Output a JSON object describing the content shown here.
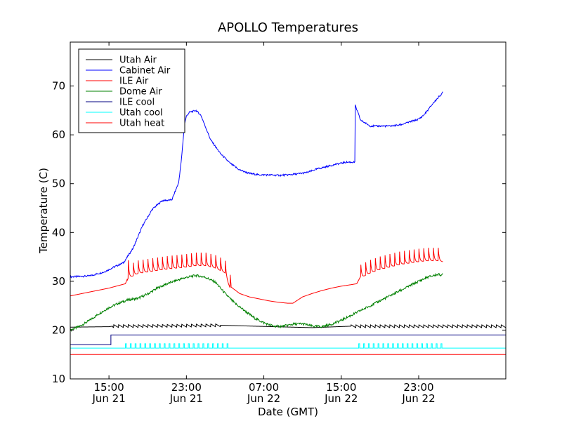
{
  "chart_data": {
    "type": "line",
    "title": "APOLLO Temperatures",
    "xlabel": "Date (GMT)",
    "ylabel": "Temperature (C)",
    "xlim": [
      11,
      56
    ],
    "ylim": [
      10,
      79
    ],
    "grid": false,
    "legend_position": "top-left",
    "x_unit": "hours since Jun 21 00:00 GMT",
    "x_ticks": [
      {
        "x": 15,
        "line1": "15:00",
        "line2": "Jun 21"
      },
      {
        "x": 23,
        "line1": "23:00",
        "line2": "Jun 21"
      },
      {
        "x": 31,
        "line1": "07:00",
        "line2": "Jun 22"
      },
      {
        "x": 39,
        "line1": "15:00",
        "line2": "Jun 22"
      },
      {
        "x": 47,
        "line1": "23:00",
        "line2": "Jun 22"
      }
    ],
    "y_ticks": [
      10,
      20,
      30,
      40,
      50,
      60,
      70
    ],
    "series": [
      {
        "name": "Utah Air",
        "color": "#000000",
        "style": "sawtooth",
        "x": [
          11,
          15,
          15.4,
          22,
          26.5,
          30,
          36,
          40,
          56
        ],
        "y": [
          20.6,
          20.7,
          20.8,
          20.9,
          21.0,
          20.8,
          20.5,
          20.8,
          20.8
        ],
        "oscillation": {
          "period": 0.5,
          "amplitude": 0.6,
          "active_ranges": [
            [
              15.4,
              26.5
            ],
            [
              40,
              56
            ]
          ]
        }
      },
      {
        "name": "Cabinet Air",
        "color": "#0000ff",
        "style": "line",
        "x": [
          11,
          13,
          14.5,
          15.5,
          16.5,
          17.5,
          18.5,
          19.5,
          20.5,
          21.5,
          22.2,
          22.5,
          22.8,
          23.0,
          23.3,
          24.0,
          24.5,
          25.0,
          25.5,
          26.5,
          27.5,
          28.5,
          29.5,
          30.5,
          31.5,
          32.5,
          33.5,
          34.5,
          35.5,
          36.5,
          37.5,
          38.5,
          39.5,
          40.4,
          40.45,
          41.0,
          42.0,
          43.0,
          44.0,
          45.0,
          46.0,
          47.0,
          47.5,
          48.0,
          48.5,
          49.0,
          49.5
        ],
        "y": [
          30.9,
          31.1,
          31.9,
          32.9,
          33.8,
          36.8,
          41.5,
          44.8,
          46.5,
          46.7,
          50.2,
          55.2,
          62.2,
          63.8,
          64.6,
          65.0,
          64.0,
          61.5,
          59.0,
          56.2,
          54.2,
          52.8,
          52.1,
          51.8,
          51.8,
          51.7,
          51.8,
          52.0,
          52.3,
          53.0,
          53.5,
          54.0,
          54.4,
          54.4,
          66.0,
          63.0,
          61.8,
          61.8,
          61.8,
          62.0,
          62.6,
          63.2,
          64.0,
          65.2,
          66.5,
          67.6,
          68.7
        ]
      },
      {
        "name": "ILE Air",
        "color": "#ff0000",
        "style": "spiky",
        "x": [
          11,
          13,
          15,
          16.7,
          17,
          17.5,
          18,
          19,
          20,
          21,
          22,
          23,
          24,
          25,
          26,
          27,
          27.3,
          27.5,
          28.5,
          29.5,
          30.5,
          31.5,
          32.5,
          33.5,
          34,
          35,
          36,
          37,
          38,
          39,
          40,
          40.6,
          41,
          42,
          43,
          44,
          45,
          46,
          47,
          48,
          49,
          49.5
        ],
        "y": [
          27.0,
          27.8,
          28.6,
          29.5,
          31.0,
          31.4,
          31.9,
          32.2,
          32.5,
          32.8,
          33.0,
          33.2,
          33.5,
          33.5,
          33.0,
          32.0,
          30.0,
          29.0,
          27.5,
          26.8,
          26.4,
          26.0,
          25.7,
          25.5,
          25.5,
          26.8,
          27.5,
          28.1,
          28.6,
          29.0,
          29.3,
          29.5,
          31.0,
          32.0,
          32.7,
          33.2,
          33.7,
          34.0,
          34.3,
          34.5,
          34.5,
          34.3
        ],
        "oscillation": {
          "period": 0.5,
          "amplitude": 3.6,
          "active_ranges": [
            [
              16.9,
              27.6
            ],
            [
              41.0,
              49.5
            ]
          ]
        }
      },
      {
        "name": "Dome Air",
        "color": "#008000",
        "style": "line",
        "x": [
          11,
          12,
          13,
          14,
          15,
          16,
          17,
          18,
          19,
          20,
          21,
          22,
          23,
          24,
          25,
          26,
          27,
          28,
          29,
          30,
          31,
          32,
          33,
          34,
          35,
          36,
          37,
          38,
          39,
          40,
          41,
          42,
          43,
          44,
          45,
          46,
          47,
          48,
          49,
          49.5
        ],
        "y": [
          20.0,
          20.8,
          22.0,
          23.4,
          24.6,
          25.5,
          26.2,
          26.5,
          27.4,
          28.6,
          29.5,
          30.2,
          30.8,
          31.2,
          30.8,
          29.8,
          27.5,
          25.5,
          24.0,
          22.5,
          21.5,
          20.8,
          20.8,
          21.2,
          21.3,
          20.8,
          20.7,
          21.2,
          22.0,
          23.0,
          24.0,
          25.0,
          26.0,
          27.0,
          28.0,
          29.0,
          30.0,
          30.9,
          31.4,
          31.3
        ]
      },
      {
        "name": "ILE cool",
        "color": "#000080",
        "style": "step",
        "x": [
          11,
          15.2,
          15.2,
          56
        ],
        "y": [
          17.0,
          17.0,
          19.0,
          19.0
        ]
      },
      {
        "name": "Utah cool",
        "color": "#00ffff",
        "style": "pulses",
        "baseline": 16.3,
        "pulse_high": 17.2,
        "pulse_width": 0.1,
        "period": 0.5,
        "active_ranges": [
          [
            16.7,
            27.6
          ],
          [
            40.8,
            49.5
          ]
        ]
      },
      {
        "name": "Utah heat",
        "color": "#ff0000",
        "style": "line",
        "x": [
          11,
          56
        ],
        "y": [
          15.0,
          15.0
        ]
      }
    ]
  }
}
